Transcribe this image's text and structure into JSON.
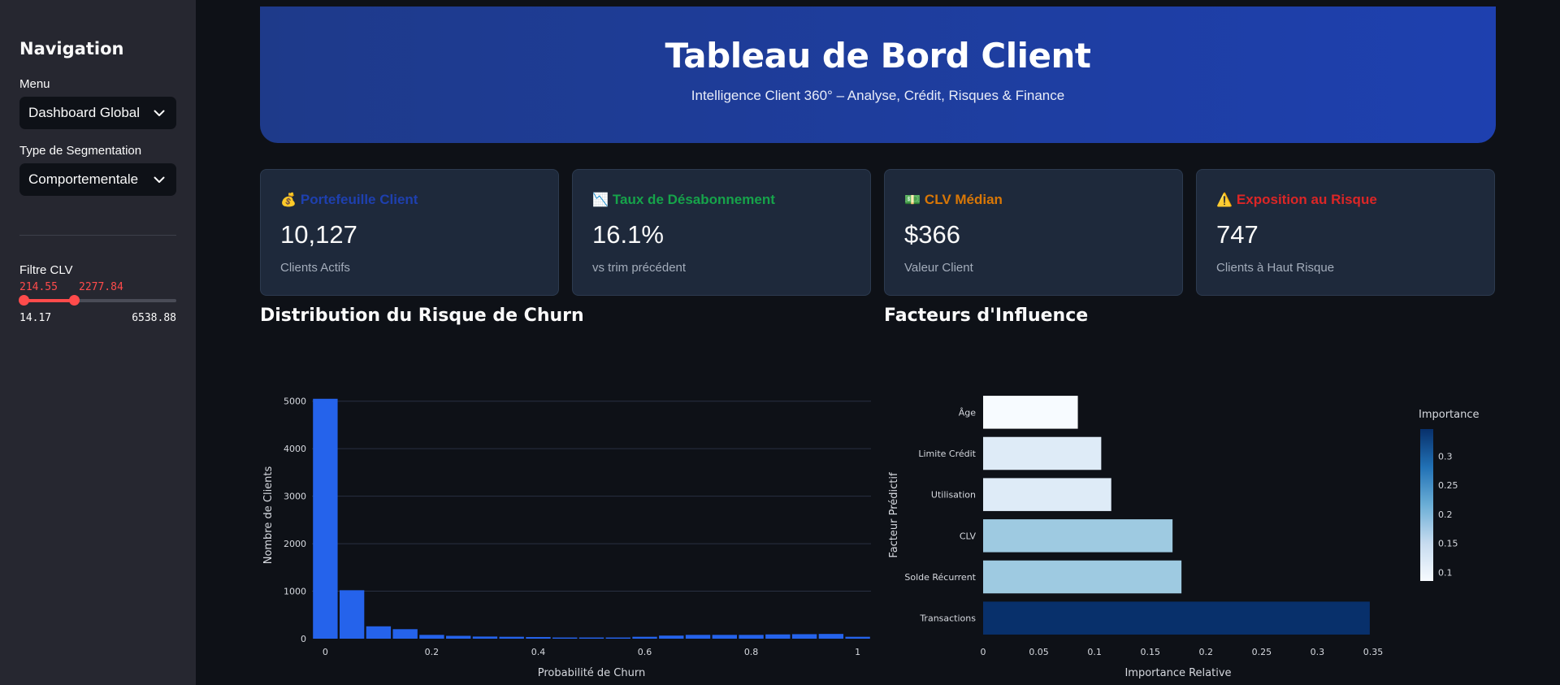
{
  "sidebar": {
    "title": "Navigation",
    "menu_label": "Menu",
    "menu_value": "Dashboard Global",
    "segmentation_label": "Type de Segmentation",
    "segmentation_value": "Comportementale",
    "clv_filter_label": "Filtre CLV",
    "clv_range": {
      "low": "214.55",
      "high": "2277.84",
      "min": "14.17",
      "max": "6538.88"
    }
  },
  "header": {
    "title": "Tableau de Bord Client",
    "subtitle": "Intelligence Client 360° – Analyse, Crédit, Risques & Finance"
  },
  "kpis": [
    {
      "icon": "money-bag-icon",
      "emoji": "💰",
      "title": "Portefeuille Client",
      "value": "10,127",
      "sub": "Clients Actifs",
      "color": "#1e40af"
    },
    {
      "icon": "chart-down-icon",
      "emoji": "📉",
      "title": "Taux de Désabonnement",
      "value": "16.1%",
      "sub": "vs trim précédent",
      "color": "#16a34a"
    },
    {
      "icon": "dollar-banknote-icon",
      "emoji": "💵",
      "title": "CLV Médian",
      "value": "$366",
      "sub": "Valeur Client",
      "color": "#d97706"
    },
    {
      "icon": "warning-icon",
      "emoji": "⚠️",
      "title": "Exposition au Risque",
      "value": "747",
      "sub": "Clients à Haut Risque",
      "color": "#dc2626"
    }
  ],
  "sections": {
    "churn_title": "Distribution du Risque de Churn",
    "factors_title": "Facteurs d'Influence"
  },
  "chart_data": [
    {
      "type": "bar",
      "xlabel": "Probabilité de Churn",
      "ylabel": "Nombre de Clients",
      "xticks": [
        0,
        0.2,
        0.4,
        0.6,
        0.8,
        1
      ],
      "yticks": [
        0,
        1000,
        2000,
        3000,
        4000,
        5000
      ],
      "xlim": [
        -0.025,
        1.025
      ],
      "ylim": [
        0,
        5200
      ],
      "bin_width": 0.05,
      "bin_centers": [
        0,
        0.05,
        0.1,
        0.15,
        0.2,
        0.25,
        0.3,
        0.35,
        0.4,
        0.45,
        0.5,
        0.55,
        0.6,
        0.65,
        0.7,
        0.75,
        0.8,
        0.85,
        0.9,
        0.95,
        1.0
      ],
      "values": [
        5050,
        1020,
        260,
        200,
        80,
        60,
        45,
        40,
        35,
        25,
        25,
        25,
        40,
        65,
        80,
        80,
        80,
        90,
        95,
        100,
        40
      ],
      "color": "#2563eb",
      "grid": true
    },
    {
      "type": "bar",
      "orientation": "horizontal",
      "xlabel": "Importance Relative",
      "ylabel": "Facteur Prédictif",
      "categories": [
        "Âge",
        "Limite Crédit",
        "Utilisation",
        "CLV",
        "Solde Récurrent",
        "Transactions"
      ],
      "values": [
        0.085,
        0.106,
        0.115,
        0.17,
        0.178,
        0.347
      ],
      "xticks": [
        "0",
        "0.05",
        "0.1",
        "0.15",
        "0.2",
        "0.25",
        "0.3",
        "0.35"
      ],
      "xlim": [
        0,
        0.35
      ],
      "colorbar": {
        "title": "Importance",
        "ticks": [
          "0.1",
          "0.15",
          "0.2",
          "0.25",
          "0.3"
        ],
        "range": [
          0.085,
          0.347
        ],
        "colorscale": "Blues"
      }
    }
  ]
}
